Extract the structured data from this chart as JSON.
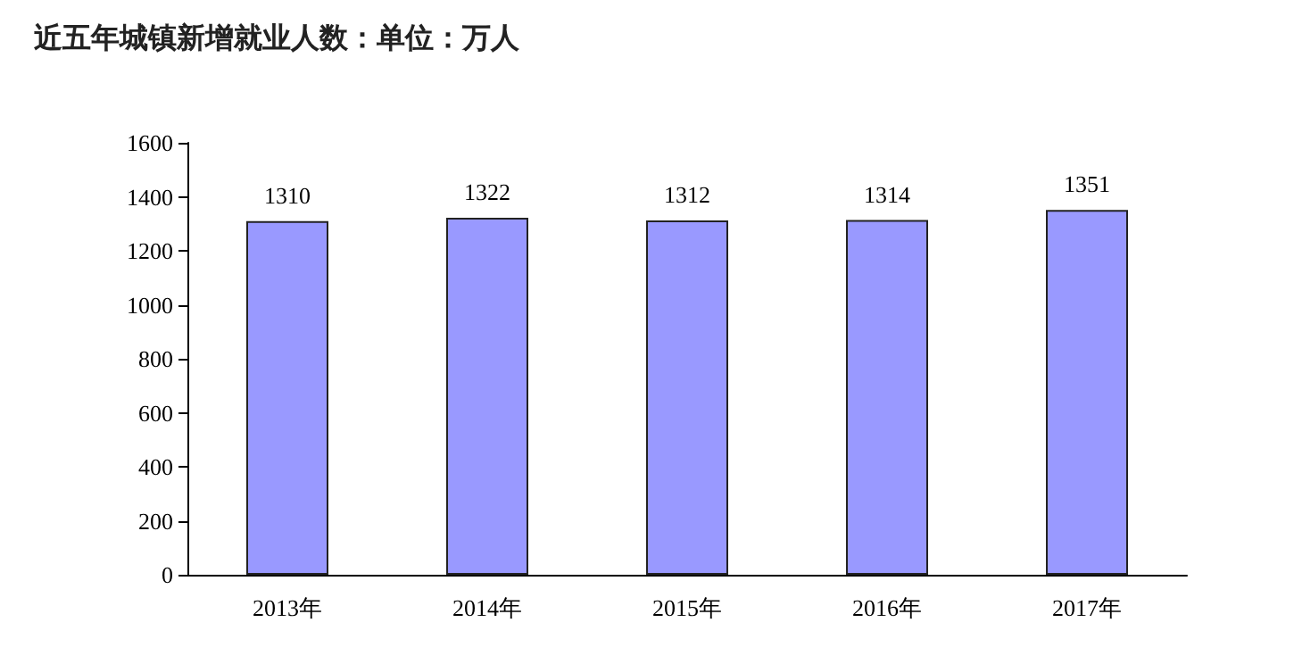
{
  "chart_data": {
    "type": "bar",
    "title": "近五年城镇新增就业人数：单位：万人",
    "categories": [
      "2013年",
      "2014年",
      "2015年",
      "2016年",
      "2017年"
    ],
    "values": [
      1310,
      1322,
      1312,
      1314,
      1351
    ],
    "color": "#9999ff",
    "ylim": [
      0,
      1600
    ],
    "yticks": [
      0,
      200,
      400,
      600,
      800,
      1000,
      1200,
      1400,
      1600
    ],
    "grid": false,
    "data_labels": true
  }
}
